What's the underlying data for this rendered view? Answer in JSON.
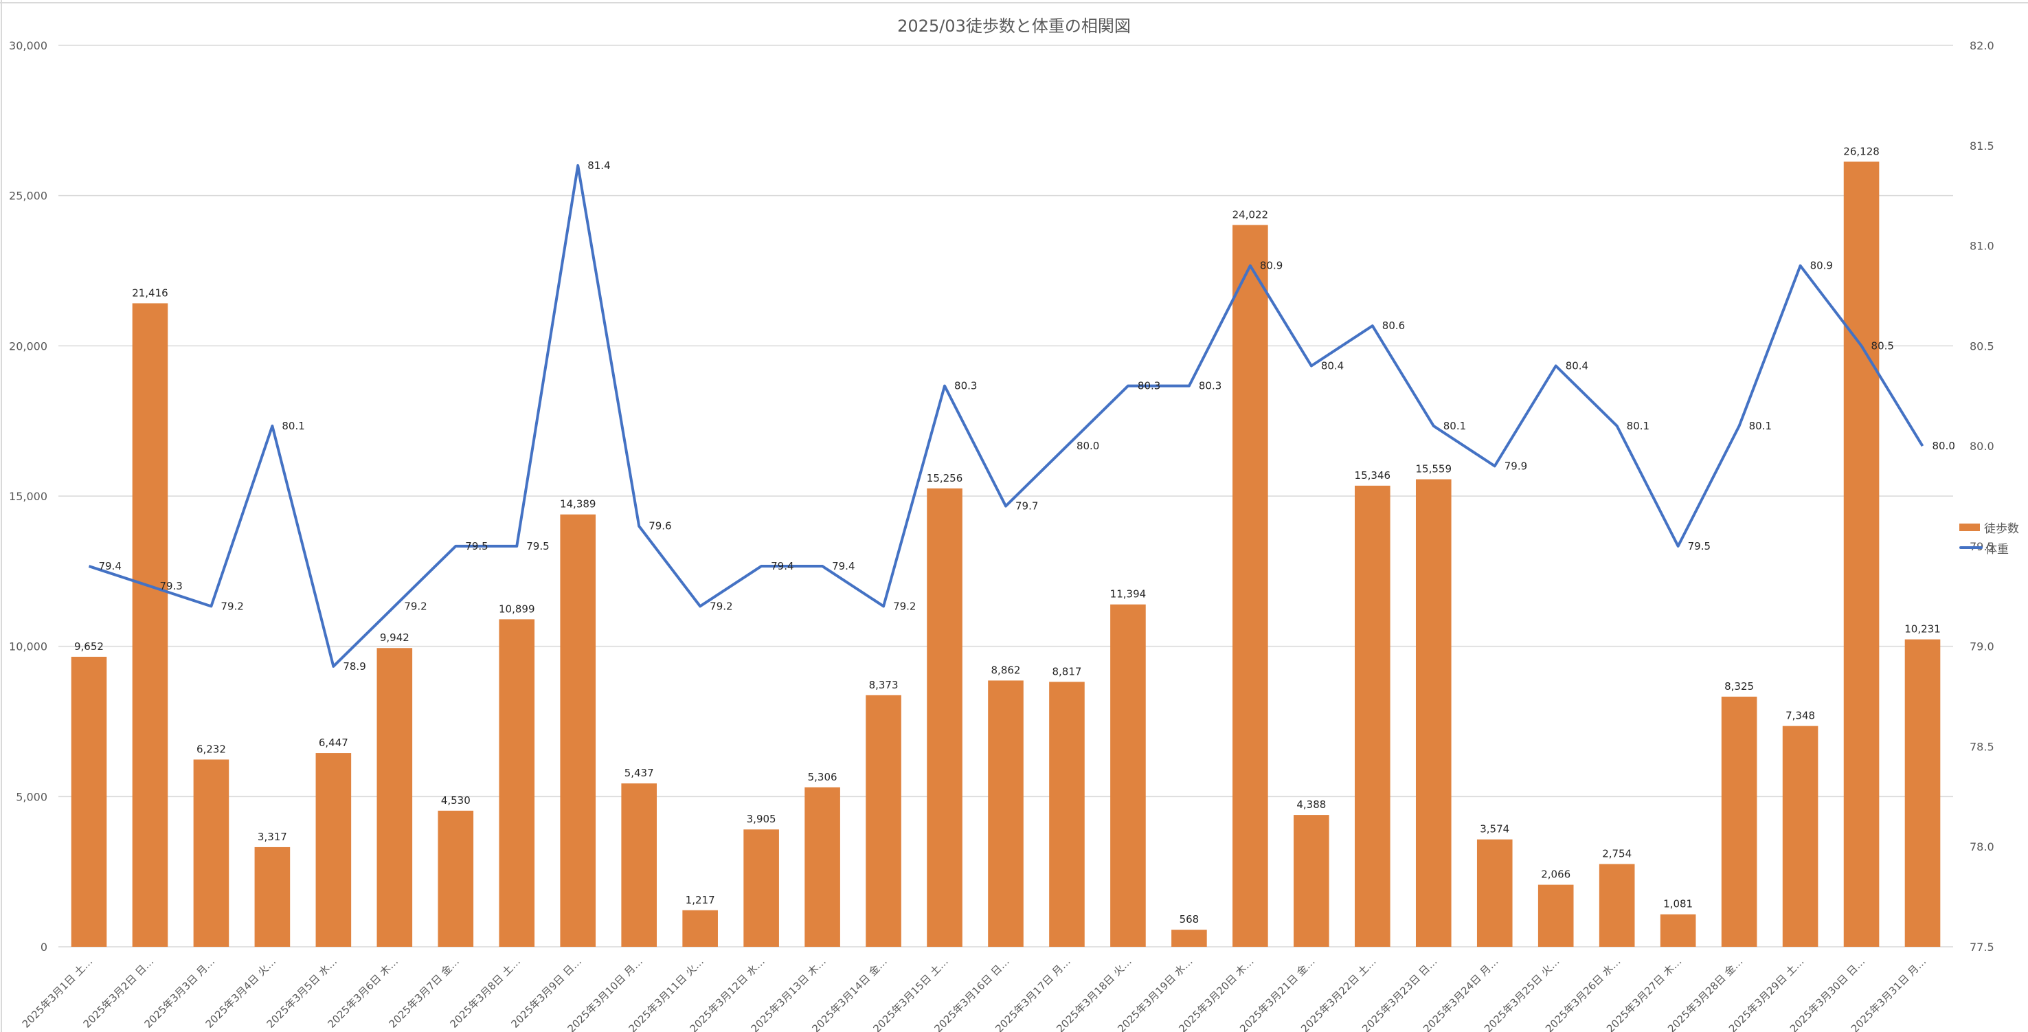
{
  "chart_data": {
    "type": "bar+line",
    "title": "2025/03徒歩数と体重の相関図",
    "categories": [
      "2025年3月1日 土…",
      "2025年3月2日 日…",
      "2025年3月3日 月…",
      "2025年3月4日 火…",
      "2025年3月5日 水…",
      "2025年3月6日 木…",
      "2025年3月7日 金…",
      "2025年3月8日 土…",
      "2025年3月9日 日…",
      "2025年3月10日 月…",
      "2025年3月11日 火…",
      "2025年3月12日 水…",
      "2025年3月13日 木…",
      "2025年3月14日 金…",
      "2025年3月15日 土…",
      "2025年3月16日 日…",
      "2025年3月17日 月…",
      "2025年3月18日 火…",
      "2025年3月19日 水…",
      "2025年3月20日 木…",
      "2025年3月21日 金…",
      "2025年3月22日 土…",
      "2025年3月23日 日…",
      "2025年3月24日 月…",
      "2025年3月25日 火…",
      "2025年3月26日 水…",
      "2025年3月27日 木…",
      "2025年3月28日 金…",
      "2025年3月29日 土…",
      "2025年3月30日 日…",
      "2025年3月31日 月…"
    ],
    "series": [
      {
        "name": "徒歩数",
        "type": "bar",
        "axis": "left",
        "color": "#E0833F",
        "values": [
          9652,
          21416,
          6232,
          3317,
          6447,
          9942,
          4530,
          10899,
          14389,
          5437,
          1217,
          3905,
          5306,
          8373,
          15256,
          8862,
          8817,
          11394,
          568,
          24022,
          4388,
          15346,
          15559,
          3574,
          2066,
          2754,
          1081,
          8325,
          7348,
          26128,
          10231
        ]
      },
      {
        "name": "体重",
        "type": "line",
        "axis": "right",
        "color": "#4472C4",
        "values": [
          79.4,
          79.3,
          79.2,
          80.1,
          78.9,
          79.2,
          79.5,
          79.5,
          81.4,
          79.6,
          79.2,
          79.4,
          79.4,
          79.2,
          80.3,
          79.7,
          80.0,
          80.3,
          80.3,
          80.9,
          80.4,
          80.6,
          80.1,
          79.9,
          80.4,
          80.1,
          79.5,
          80.1,
          80.9,
          80.5,
          80.0
        ]
      }
    ],
    "y_left": {
      "min": 0,
      "max": 30000,
      "ticks": [
        "0",
        "5,000",
        "10,000",
        "15,000",
        "20,000",
        "25,000",
        "30,000"
      ]
    },
    "y_right": {
      "min": 77.5,
      "max": 82.0,
      "ticks": [
        "77.5",
        "78.0",
        "78.5",
        "79.0",
        "79.5",
        "80.0",
        "80.5",
        "81.0",
        "81.5",
        "82.0"
      ]
    },
    "grid": true,
    "legend": "right"
  }
}
